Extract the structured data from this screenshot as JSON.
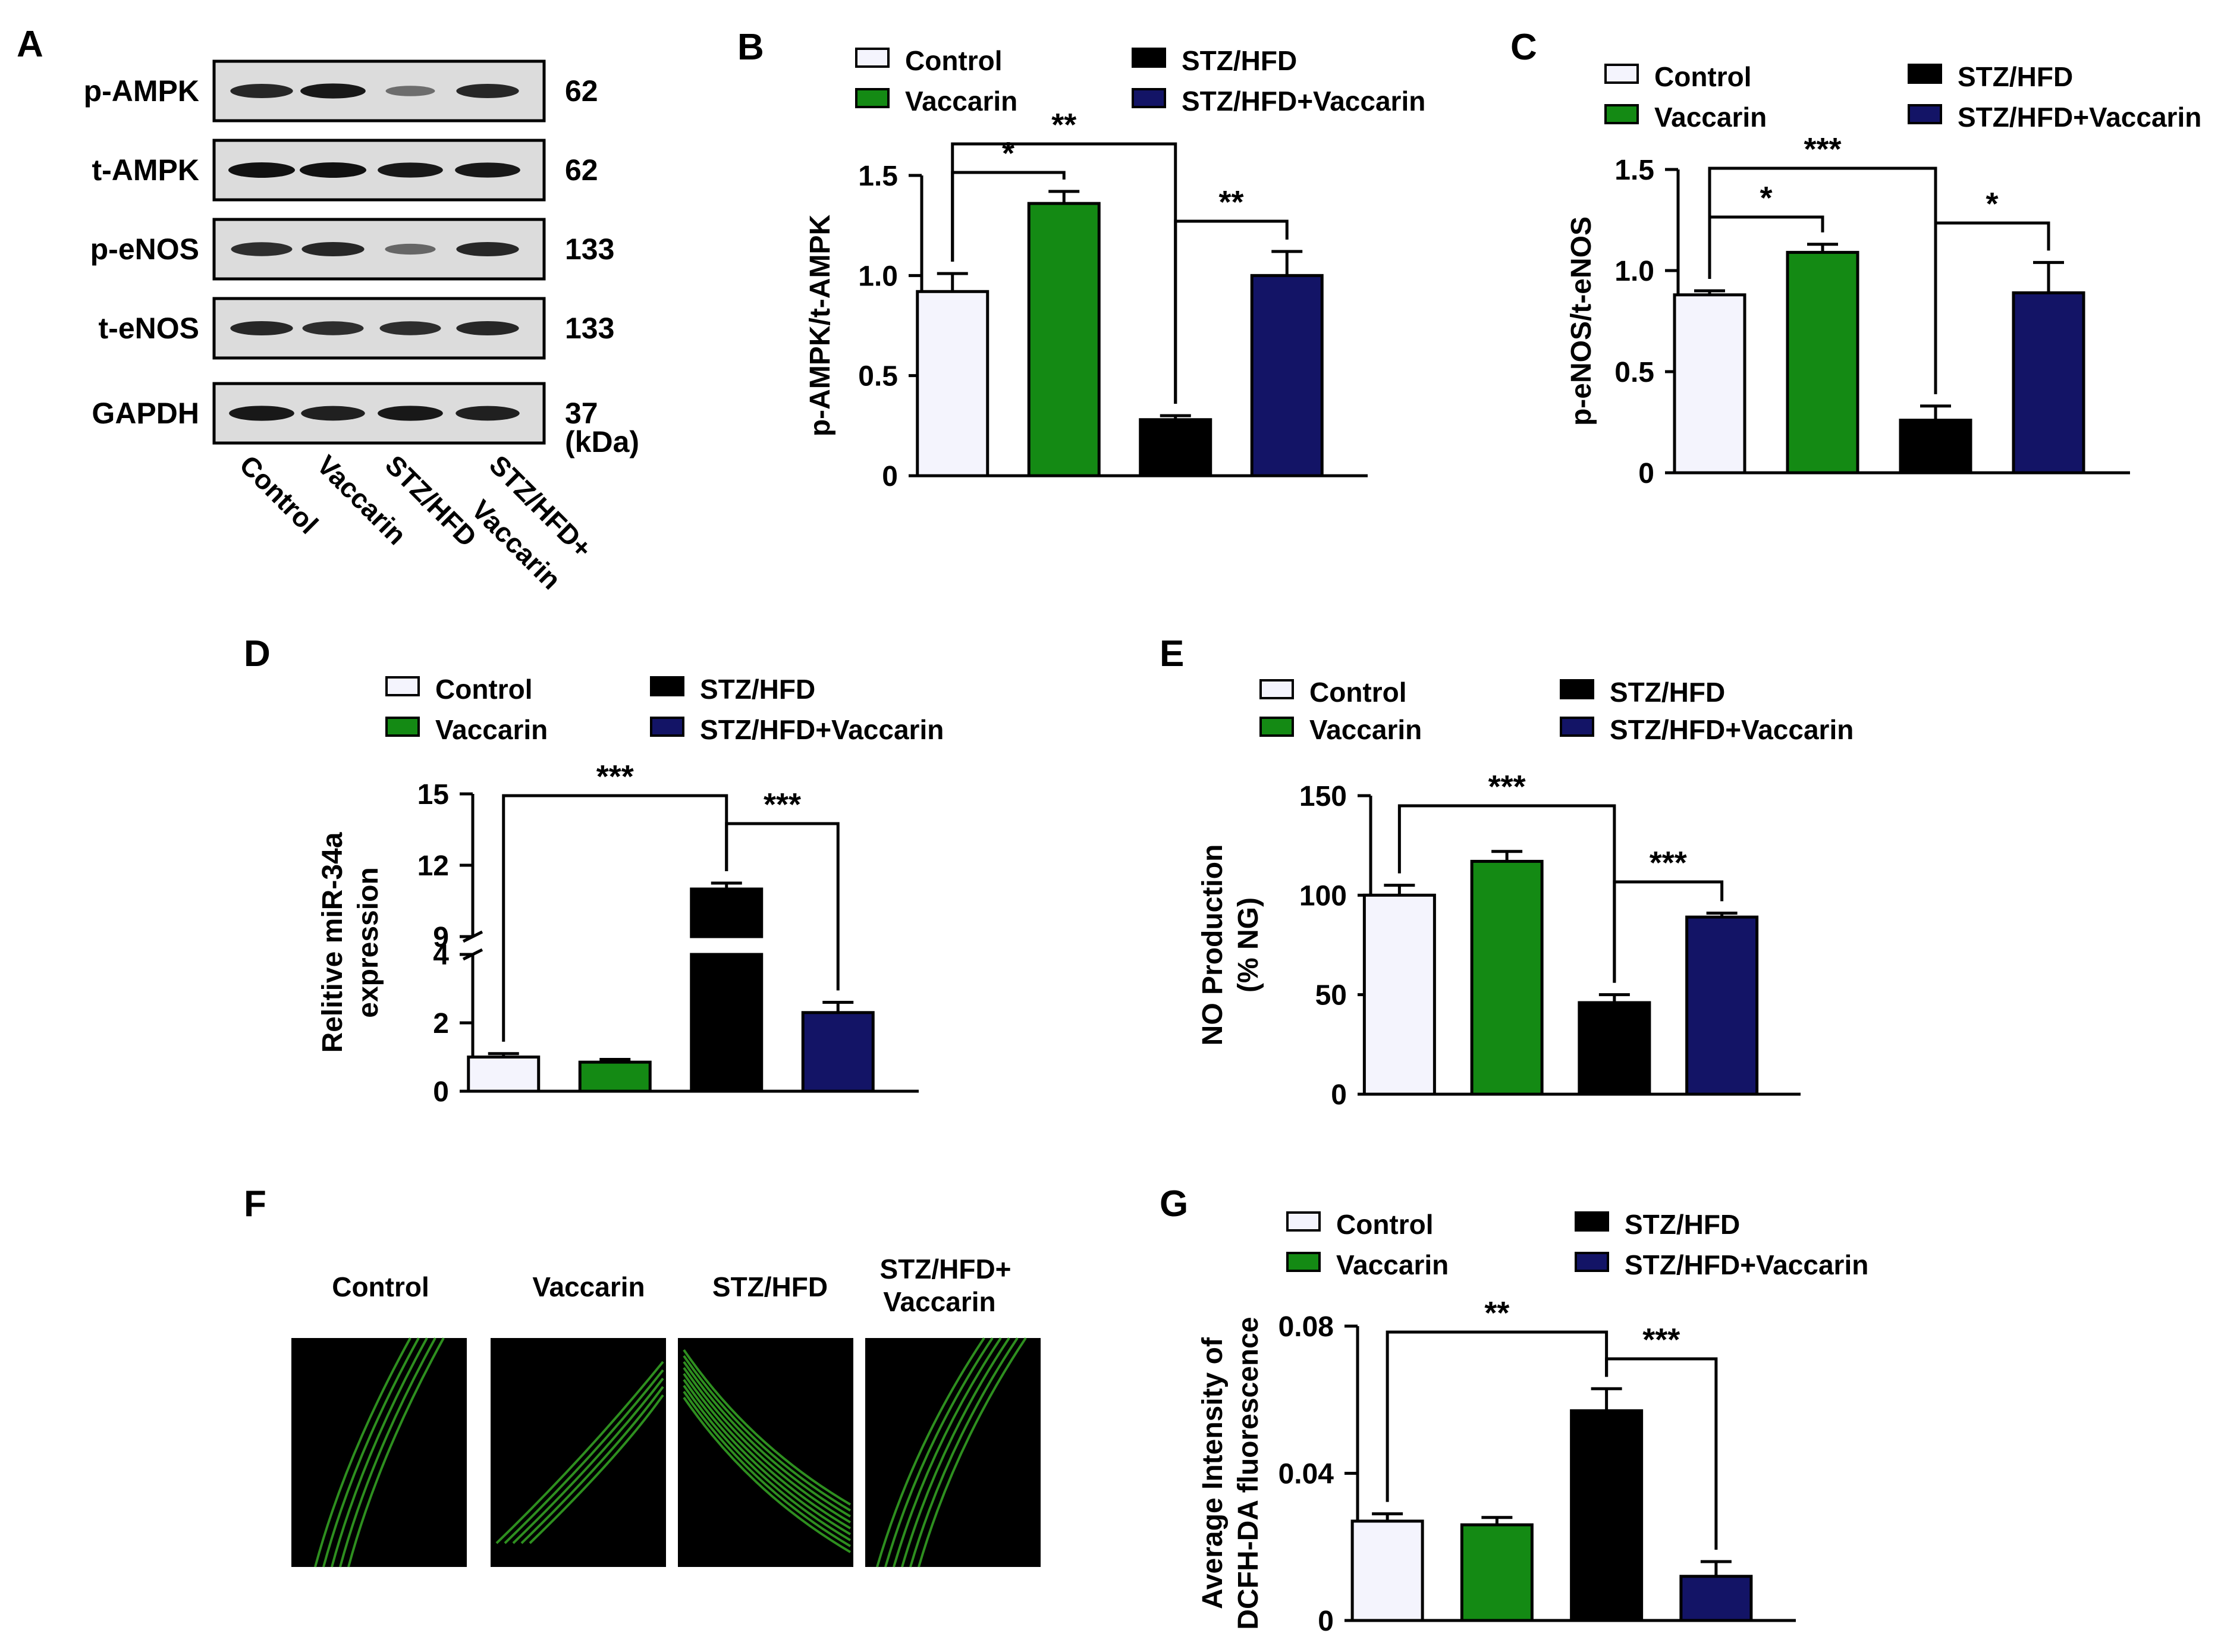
{
  "colors": {
    "control": "#f4f4fd",
    "vaccarin": "#148a14",
    "stz_hfd": "#000000",
    "stz_hfd_vaccarin": "#131466",
    "blot_bg": "#dcdcdc",
    "blot_band": "#111111",
    "micro_bg": "#000000",
    "micro_fiber": "#3dbf2a"
  },
  "legend_labels": [
    "Control",
    "Vaccarin",
    "STZ/HFD",
    "STZ/HFD+Vaccarin"
  ],
  "panel_a": {
    "letter": "A",
    "rows": [
      {
        "label": "p-AMPK",
        "mw": "62",
        "bands": [
          0.85,
          0.95,
          0.35,
          0.85
        ]
      },
      {
        "label": "t-AMPK",
        "mw": "62",
        "bands": [
          1.0,
          1.0,
          0.95,
          0.95
        ]
      },
      {
        "label": "p-eNOS",
        "mw": "133",
        "bands": [
          0.8,
          0.85,
          0.4,
          0.85
        ]
      },
      {
        "label": "t-eNOS",
        "mw": "133",
        "bands": [
          0.85,
          0.8,
          0.8,
          0.85
        ]
      },
      {
        "label": "GAPDH",
        "mw": "37",
        "bands": [
          0.95,
          0.9,
          0.95,
          0.9
        ]
      }
    ],
    "unit": "(kDa)",
    "lanes": [
      "Control",
      "Vaccarin",
      "STZ/HFD",
      "STZ/HFD+",
      "Vaccarin"
    ]
  },
  "panel_f": {
    "letter": "F",
    "labels": [
      "Control",
      "Vaccarin",
      "STZ/HFD",
      "STZ/HFD+",
      "Vaccarin"
    ]
  },
  "chart_data": [
    {
      "type": "bar",
      "panel": "B",
      "letter": "B",
      "categories": [
        "Control",
        "Vaccarin",
        "STZ/HFD",
        "STZ/HFD+Vaccarin"
      ],
      "values": [
        0.92,
        1.36,
        0.28,
        1.0
      ],
      "errors": [
        0.09,
        0.06,
        0.02,
        0.12
      ],
      "ylabel": "p-AMPK/t-AMPK",
      "ylim": [
        0,
        1.5
      ],
      "yticks": [
        "0",
        "0.5",
        "1.0",
        "1.5"
      ],
      "significance": [
        {
          "from": 0,
          "to": 1,
          "label": "*"
        },
        {
          "from": 0,
          "to": 2,
          "label": "**"
        },
        {
          "from": 2,
          "to": 3,
          "label": "**"
        }
      ]
    },
    {
      "type": "bar",
      "panel": "C",
      "letter": "C",
      "categories": [
        "Control",
        "Vaccarin",
        "STZ/HFD",
        "STZ/HFD+Vaccarin"
      ],
      "values": [
        0.88,
        1.09,
        0.26,
        0.89
      ],
      "errors": [
        0.02,
        0.04,
        0.07,
        0.15
      ],
      "ylabel": "p-eNOS/t-eNOS",
      "ylim": [
        0,
        1.5
      ],
      "yticks": [
        "0",
        "0.5",
        "1.0",
        "1.5"
      ],
      "significance": [
        {
          "from": 0,
          "to": 1,
          "label": "*"
        },
        {
          "from": 0,
          "to": 2,
          "label": "***"
        },
        {
          "from": 2,
          "to": 3,
          "label": "*"
        }
      ]
    },
    {
      "type": "bar",
      "panel": "D",
      "letter": "D",
      "categories": [
        "Control",
        "Vaccarin",
        "STZ/HFD",
        "STZ/HFD+Vaccarin"
      ],
      "values": [
        1.0,
        0.85,
        11.0,
        2.3
      ],
      "errors": [
        0.1,
        0.08,
        0.25,
        0.3
      ],
      "ylabel": [
        "Relitive miR-34a",
        "expression"
      ],
      "broken_axis": true,
      "ylim_lower": [
        0,
        4
      ],
      "ylim_upper": [
        9,
        15
      ],
      "yticks_lower": [
        "0",
        "2",
        "4"
      ],
      "yticks_upper": [
        "9",
        "12",
        "15"
      ],
      "significance": [
        {
          "from": 0,
          "to": 2,
          "label": "***"
        },
        {
          "from": 2,
          "to": 3,
          "label": "***"
        }
      ]
    },
    {
      "type": "bar",
      "panel": "E",
      "letter": "E",
      "categories": [
        "Control",
        "Vaccarin",
        "STZ/HFD",
        "STZ/HFD+Vaccarin"
      ],
      "values": [
        100,
        117,
        46,
        89
      ],
      "errors": [
        5,
        5,
        4,
        2
      ],
      "ylabel": [
        "NO Production",
        "(% NG)"
      ],
      "ylim": [
        0,
        150
      ],
      "yticks": [
        "0",
        "50",
        "100",
        "150"
      ],
      "significance": [
        {
          "from": 0,
          "to": 2,
          "label": "***"
        },
        {
          "from": 2,
          "to": 3,
          "label": "***"
        }
      ]
    },
    {
      "type": "bar",
      "panel": "G",
      "letter": "G",
      "categories": [
        "Control",
        "Vaccarin",
        "STZ/HFD",
        "STZ/HFD+Vaccarin"
      ],
      "values": [
        0.027,
        0.026,
        0.057,
        0.012
      ],
      "errors": [
        0.002,
        0.002,
        0.006,
        0.004
      ],
      "ylabel": [
        "Average Intensity of",
        "DCFH-DA fluorescence"
      ],
      "ylim": [
        0,
        0.08
      ],
      "yticks": [
        "0",
        "0.04",
        "0.08"
      ],
      "significance": [
        {
          "from": 0,
          "to": 2,
          "label": "**"
        },
        {
          "from": 2,
          "to": 3,
          "label": "***"
        }
      ]
    }
  ]
}
